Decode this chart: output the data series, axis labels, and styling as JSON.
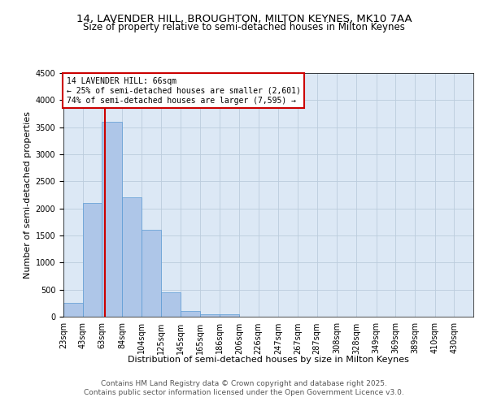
{
  "title": "14, LAVENDER HILL, BROUGHTON, MILTON KEYNES, MK10 7AA",
  "subtitle": "Size of property relative to semi-detached houses in Milton Keynes",
  "xlabel": "Distribution of semi-detached houses by size in Milton Keynes",
  "ylabel": "Number of semi-detached properties",
  "footer_line1": "Contains HM Land Registry data © Crown copyright and database right 2025.",
  "footer_line2": "Contains public sector information licensed under the Open Government Licence v3.0.",
  "annotation_title": "14 LAVENDER HILL: 66sqm",
  "annotation_line1": "← 25% of semi-detached houses are smaller (2,601)",
  "annotation_line2": "74% of semi-detached houses are larger (7,595) →",
  "property_size_sqm": 66,
  "bar_labels": [
    "23sqm",
    "43sqm",
    "63sqm",
    "84sqm",
    "104sqm",
    "125sqm",
    "145sqm",
    "165sqm",
    "186sqm",
    "206sqm",
    "226sqm",
    "247sqm",
    "267sqm",
    "287sqm",
    "308sqm",
    "328sqm",
    "349sqm",
    "369sqm",
    "389sqm",
    "410sqm",
    "430sqm"
  ],
  "bar_values": [
    250,
    2100,
    3600,
    2200,
    1600,
    450,
    100,
    50,
    50,
    0,
    0,
    0,
    0,
    0,
    0,
    0,
    0,
    0,
    0,
    0,
    0
  ],
  "bar_edges": [
    23,
    43,
    63,
    84,
    104,
    125,
    145,
    165,
    186,
    206,
    226,
    247,
    267,
    287,
    308,
    328,
    349,
    369,
    389,
    410,
    430
  ],
  "bar_color": "#aec6e8",
  "bar_edge_color": "#5a9ad4",
  "annotation_box_color": "#cc0000",
  "vline_color": "#cc0000",
  "ylim": [
    0,
    4500
  ],
  "yticks": [
    0,
    500,
    1000,
    1500,
    2000,
    2500,
    3000,
    3500,
    4000,
    4500
  ],
  "grid_color": "#bbccdd",
  "bg_color": "#dce8f5",
  "title_fontsize": 9.5,
  "subtitle_fontsize": 8.5,
  "axis_label_fontsize": 8,
  "tick_fontsize": 7,
  "annotation_fontsize": 7,
  "footer_fontsize": 6.5
}
